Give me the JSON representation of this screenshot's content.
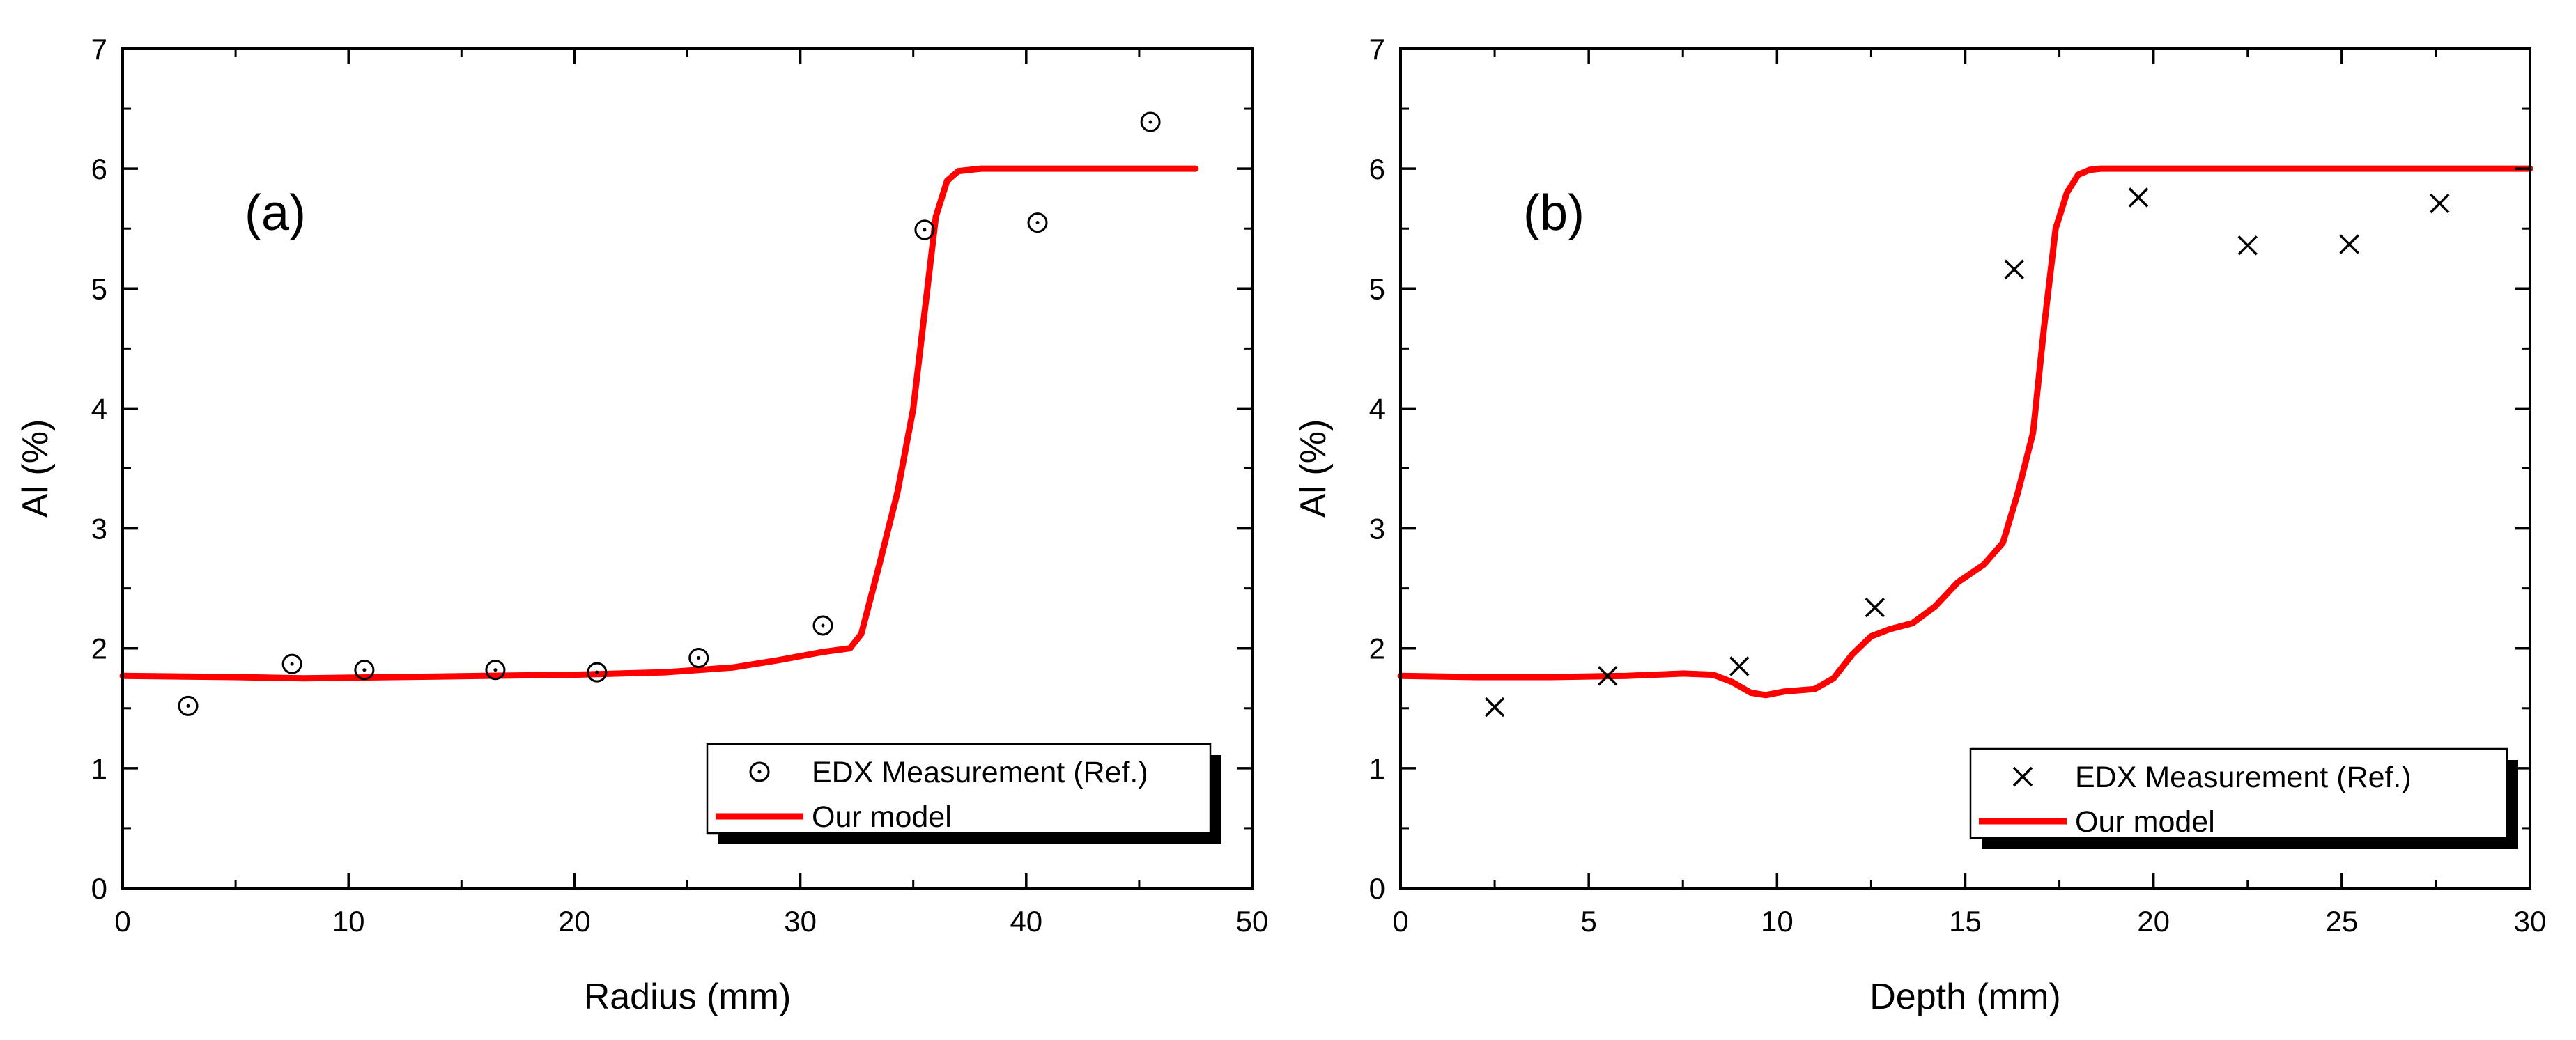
{
  "chart_data": [
    {
      "type": "scatter+line",
      "panel_label": "(a)",
      "xlabel": "Radius (mm)",
      "ylabel": "Al (%)",
      "xlim": [
        0,
        50
      ],
      "ylim": [
        0,
        7
      ],
      "xticks": [
        "0",
        "10",
        "20",
        "30",
        "40",
        "50"
      ],
      "yticks": [
        "0",
        "1",
        "2",
        "3",
        "4",
        "5",
        "6",
        "7"
      ],
      "grid": false,
      "legend_position": "bottom-right",
      "series": [
        {
          "name": "EDX Measurement (Ref.)",
          "kind": "scatter",
          "marker": "circle-dot",
          "color": "#000000",
          "x": [
            2.9,
            7.5,
            10.7,
            16.5,
            21.0,
            25.5,
            31.0,
            35.5,
            40.5,
            45.5
          ],
          "y": [
            1.52,
            1.87,
            1.82,
            1.82,
            1.8,
            1.92,
            2.19,
            5.49,
            5.55,
            6.39
          ]
        },
        {
          "name": "Our model",
          "kind": "line",
          "color": "#ff0000",
          "x": [
            0,
            5,
            8,
            12,
            16,
            20,
            24,
            27,
            29,
            31,
            32.2,
            32.7,
            33.5,
            34.3,
            35.0,
            35.5,
            36.0,
            36.5,
            37.0,
            38,
            40,
            44,
            47.5
          ],
          "y": [
            1.77,
            1.76,
            1.75,
            1.76,
            1.77,
            1.78,
            1.8,
            1.84,
            1.9,
            1.97,
            2.0,
            2.12,
            2.7,
            3.3,
            4.0,
            4.8,
            5.6,
            5.9,
            5.98,
            6.0,
            6.0,
            6.0,
            6.0
          ]
        }
      ]
    },
    {
      "type": "scatter+line",
      "panel_label": "(b)",
      "xlabel": "Depth (mm)",
      "ylabel": "Al (%)",
      "xlim": [
        0,
        30
      ],
      "ylim": [
        0,
        7
      ],
      "xticks": [
        "0",
        "5",
        "10",
        "15",
        "20",
        "25",
        "30"
      ],
      "yticks": [
        "0",
        "1",
        "2",
        "3",
        "4",
        "5",
        "6",
        "7"
      ],
      "grid": false,
      "legend_position": "bottom-right",
      "series": [
        {
          "name": "EDX Measurement (Ref.)",
          "kind": "scatter",
          "marker": "x",
          "color": "#000000",
          "x": [
            2.5,
            5.5,
            9.0,
            12.6,
            16.3,
            19.6,
            22.5,
            25.2,
            27.6
          ],
          "y": [
            1.51,
            1.77,
            1.85,
            2.34,
            5.16,
            5.76,
            5.36,
            5.37,
            5.71
          ]
        },
        {
          "name": "Our model",
          "kind": "line",
          "color": "#ff0000",
          "x": [
            0,
            2,
            4,
            6,
            7.5,
            8.3,
            8.8,
            9.3,
            9.7,
            10.2,
            11.0,
            11.5,
            12.0,
            12.5,
            13.0,
            13.6,
            14.2,
            14.8,
            15.5,
            16.0,
            16.4,
            16.8,
            17.1,
            17.4,
            17.7,
            18.0,
            18.3,
            18.6,
            19.0,
            20,
            25,
            30
          ],
          "y": [
            1.77,
            1.76,
            1.76,
            1.77,
            1.79,
            1.78,
            1.72,
            1.63,
            1.61,
            1.64,
            1.66,
            1.75,
            1.95,
            2.1,
            2.16,
            2.21,
            2.35,
            2.55,
            2.7,
            2.88,
            3.3,
            3.8,
            4.7,
            5.5,
            5.8,
            5.95,
            5.99,
            6.0,
            6.0,
            6.0,
            6.0,
            6.0
          ]
        }
      ]
    }
  ]
}
